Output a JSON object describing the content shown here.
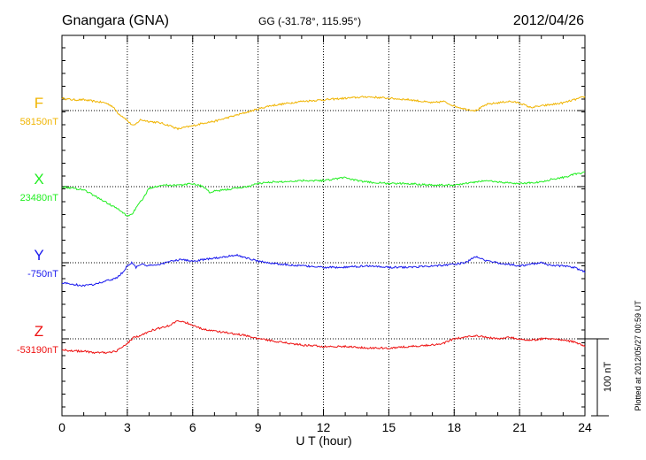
{
  "header": {
    "station": "Gnangara (GNA)",
    "coords": "GG (-31.78°, 115.95°)",
    "date": "2012/04/26"
  },
  "plotted_note": "Plotted at 2012/05/27 00:59 UT",
  "scale_bar_label": "100 nT",
  "chart_data": {
    "type": "line",
    "title": "Gnangara (GNA)",
    "xlabel": "U T (hour)",
    "ylabel": "",
    "xlim": [
      0,
      24
    ],
    "x_ticks": [
      0,
      3,
      6,
      9,
      12,
      15,
      18,
      21,
      24
    ],
    "x_tick_labels": [
      "0",
      "3",
      "6",
      "9",
      "12",
      "15",
      "18",
      "21",
      "24"
    ],
    "grid": true,
    "scale_bar_nT": 100,
    "series": [
      {
        "name": "F",
        "baseline_label": "58150nT",
        "baseline_nT": 58150,
        "color": "#f0b400",
        "x": [
          0,
          0.5,
          1,
          1.5,
          2,
          2.3,
          2.6,
          2.9,
          3.1,
          3.3,
          3.6,
          4,
          4.5,
          5,
          5.3,
          5.6,
          6,
          6.5,
          7,
          7.5,
          8,
          8.5,
          9,
          9.5,
          10,
          11,
          12,
          13,
          14,
          15,
          16,
          17,
          17.5,
          18,
          18.5,
          19,
          19.5,
          20,
          20.5,
          21,
          21.5,
          22,
          22.5,
          23,
          23.5,
          24
        ],
        "y": [
          16,
          14,
          14,
          12,
          10,
          6,
          -4,
          -10,
          -16,
          -20,
          -12,
          -14,
          -16,
          -20,
          -24,
          -22,
          -20,
          -16,
          -14,
          -10,
          -6,
          -2,
          2,
          6,
          8,
          12,
          14,
          16,
          18,
          16,
          14,
          10,
          12,
          6,
          2,
          0,
          8,
          10,
          12,
          10,
          4,
          6,
          8,
          10,
          14,
          18
        ]
      },
      {
        "name": "X",
        "baseline_label": "23480nT",
        "baseline_nT": 23480,
        "color": "#22ee22",
        "x": [
          0,
          0.5,
          1,
          1.5,
          2,
          2.5,
          2.8,
          3,
          3.2,
          3.5,
          3.8,
          4,
          4.5,
          5,
          5.5,
          6,
          6.5,
          6.8,
          7,
          7.5,
          8,
          8.5,
          9,
          9.5,
          10,
          11,
          12,
          12.5,
          13,
          13.5,
          14,
          15,
          16,
          17,
          18,
          18.5,
          19,
          19.5,
          20,
          21,
          22,
          22.5,
          23,
          23.5,
          24
        ],
        "y": [
          0,
          -2,
          -4,
          -12,
          -20,
          -28,
          -34,
          -38,
          -36,
          -24,
          -12,
          -2,
          2,
          2,
          2,
          4,
          0,
          -8,
          -6,
          -4,
          -2,
          0,
          4,
          6,
          6,
          8,
          8,
          10,
          12,
          8,
          6,
          4,
          4,
          2,
          2,
          4,
          6,
          8,
          6,
          4,
          6,
          10,
          12,
          16,
          18
        ]
      },
      {
        "name": "Y",
        "baseline_label": "-750nT",
        "baseline_nT": -750,
        "color": "#1a1aee",
        "x": [
          0,
          0.5,
          1,
          1.5,
          2,
          2.5,
          2.8,
          3,
          3.2,
          3.4,
          3.6,
          4,
          4.5,
          5,
          5.5,
          6,
          6.5,
          7,
          7.5,
          8,
          8.5,
          9,
          9.5,
          10,
          11,
          12,
          13,
          14,
          15,
          16,
          17,
          18,
          18.5,
          19,
          19.5,
          20,
          20.5,
          21,
          21.5,
          22,
          22.5,
          23,
          23.5,
          24
        ],
        "y": [
          -26,
          -28,
          -30,
          -28,
          -24,
          -20,
          -12,
          -4,
          0,
          -6,
          -2,
          -4,
          -2,
          2,
          4,
          2,
          4,
          6,
          8,
          10,
          6,
          2,
          0,
          -2,
          -4,
          -6,
          -6,
          -4,
          -6,
          -6,
          -4,
          -2,
          0,
          8,
          2,
          0,
          -2,
          -4,
          -2,
          0,
          -4,
          -4,
          -6,
          -12
        ]
      },
      {
        "name": "Z",
        "baseline_label": "-53190nT",
        "baseline_nT": -53190,
        "color": "#ee1111",
        "x": [
          0,
          0.5,
          1,
          1.5,
          2,
          2.5,
          2.8,
          3,
          3.3,
          3.6,
          4,
          4.5,
          5,
          5.3,
          5.6,
          6,
          6.5,
          7,
          7.5,
          8,
          8.5,
          9,
          9.5,
          10,
          11,
          12,
          13,
          14,
          15,
          16,
          17,
          17.5,
          18,
          18.5,
          19,
          19.5,
          20,
          20.5,
          21,
          21.5,
          22,
          22.5,
          23,
          23.5,
          24
        ],
        "y": [
          -14,
          -16,
          -16,
          -18,
          -18,
          -16,
          -10,
          -6,
          2,
          4,
          10,
          14,
          18,
          24,
          22,
          18,
          12,
          10,
          8,
          6,
          4,
          0,
          -2,
          -4,
          -8,
          -10,
          -10,
          -12,
          -12,
          -10,
          -8,
          -6,
          0,
          2,
          4,
          2,
          0,
          2,
          0,
          -2,
          0,
          0,
          -2,
          -4,
          -10
        ]
      }
    ]
  }
}
